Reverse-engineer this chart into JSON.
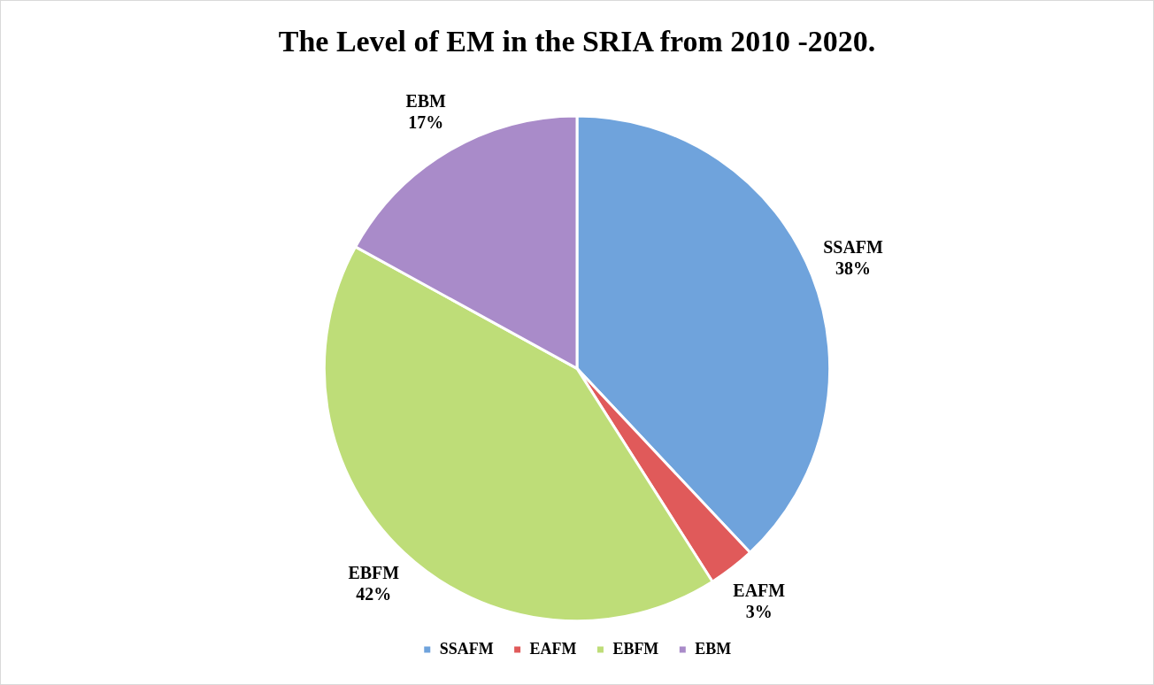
{
  "chart_data": {
    "type": "pie",
    "title": "The Level of EM in the SRIA from 2010 -2020.",
    "categories": [
      "SSAFM",
      "EAFM",
      "EBFM",
      "EBM"
    ],
    "values": [
      38,
      3,
      42,
      17
    ],
    "colors": [
      "#6fa3dc",
      "#e05a5a",
      "#bedd78",
      "#a98bc9"
    ],
    "value_labels": [
      "38%",
      "3%",
      "42%",
      "17%"
    ],
    "legend": "bottom"
  }
}
